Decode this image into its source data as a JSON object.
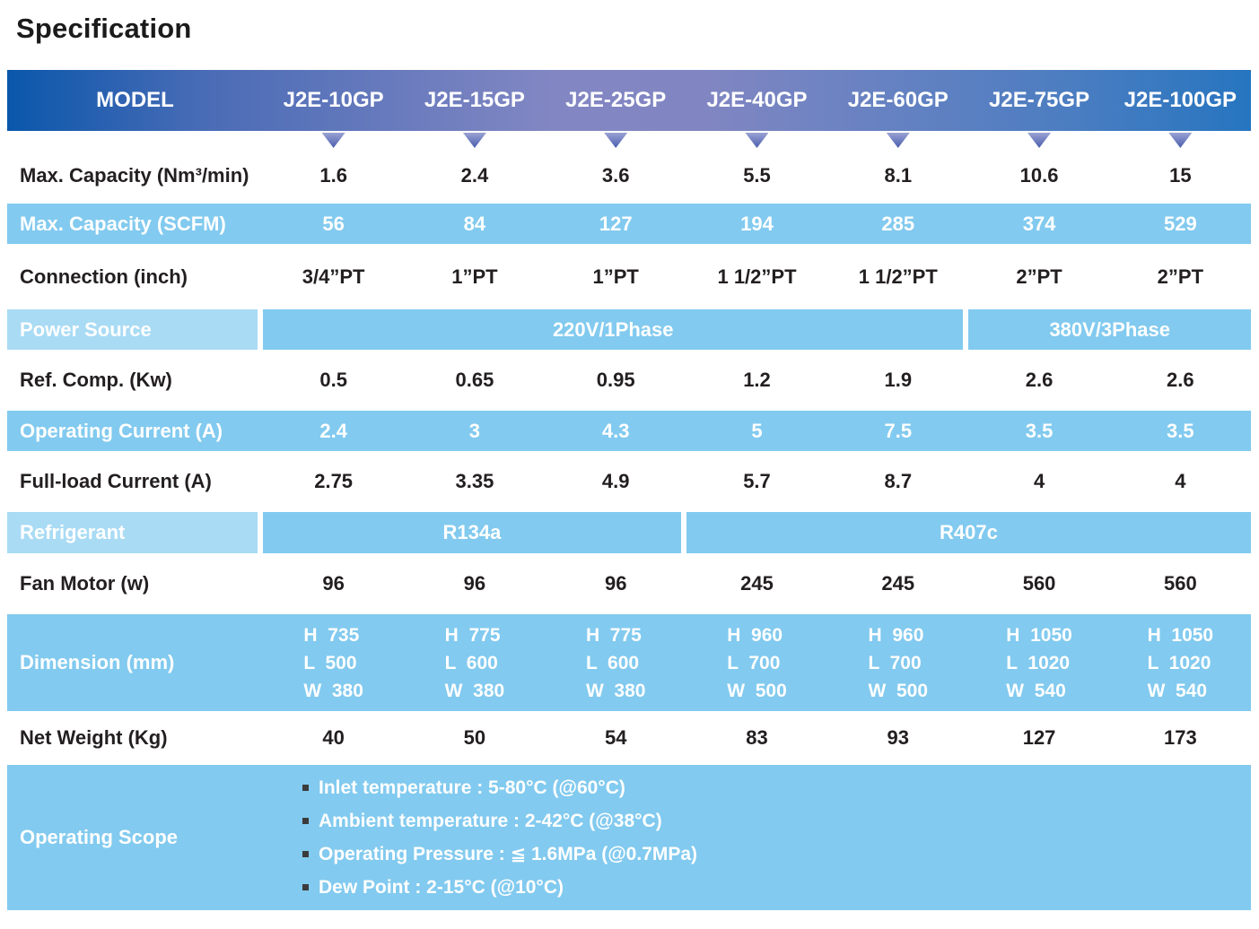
{
  "title": "Specification",
  "colors": {
    "header_gradient_left": "#0a57ab",
    "header_gradient_mid": "#8287c3",
    "header_gradient_right": "#2675c0",
    "band_blue": "#82caef",
    "label_light_blue": "#a9dbf4",
    "triangle_blue": "#5b6cb7",
    "text_dark": "#231f20",
    "text_white": "#ffffff"
  },
  "table": {
    "model_label": "MODEL",
    "models": [
      "J2E-10GP",
      "J2E-15GP",
      "J2E-25GP",
      "J2E-40GP",
      "J2E-60GP",
      "J2E-75GP",
      "J2E-100GP"
    ],
    "max_capacity_nm3": {
      "label": "Max. Capacity (Nm³/min)",
      "values": [
        "1.6",
        "2.4",
        "3.6",
        "5.5",
        "8.1",
        "10.6",
        "15"
      ]
    },
    "max_capacity_scfm": {
      "label": "Max. Capacity (SCFM)",
      "values": [
        "56",
        "84",
        "127",
        "194",
        "285",
        "374",
        "529"
      ]
    },
    "connection": {
      "label": "Connection (inch)",
      "values": [
        "3/4”PT",
        "1”PT",
        "1”PT",
        "1 1/2”PT",
        "1 1/2”PT",
        "2”PT",
        "2”PT"
      ]
    },
    "power_source": {
      "label": "Power Source",
      "span_a": "220V/1Phase",
      "span_b": "380V/3Phase"
    },
    "ref_comp": {
      "label": "Ref. Comp. (Kw)",
      "values": [
        "0.5",
        "0.65",
        "0.95",
        "1.2",
        "1.9",
        "2.6",
        "2.6"
      ]
    },
    "operating_current": {
      "label": "Operating Current (A)",
      "values": [
        "2.4",
        "3",
        "4.3",
        "5",
        "7.5",
        "3.5",
        "3.5"
      ]
    },
    "full_load_current": {
      "label": "Full-load Current (A)",
      "values": [
        "2.75",
        "3.35",
        "4.9",
        "5.7",
        "8.7",
        "4",
        "4"
      ]
    },
    "refrigerant": {
      "label": "Refrigerant",
      "span_a": "R134a",
      "span_b": "R407c"
    },
    "fan_motor": {
      "label": "Fan Motor (w)",
      "values": [
        "96",
        "96",
        "96",
        "245",
        "245",
        "560",
        "560"
      ]
    },
    "dimension": {
      "label": "Dimension (mm)",
      "values": [
        "H  735\nL  500\nW  380",
        "H  775\nL  600\nW  380",
        "H  775\nL  600\nW  380",
        "H  960\nL  700\nW  500",
        "H  960\nL  700\nW  500",
        "H  1050\nL  1020\nW  540",
        "H  1050\nL  1020\nW  540"
      ]
    },
    "net_weight": {
      "label": "Net Weight (Kg)",
      "values": [
        "40",
        "50",
        "54",
        "83",
        "93",
        "127",
        "173"
      ]
    },
    "operating_scope": {
      "label": "Operating Scope",
      "items": [
        "Inlet temperature : 5-80°C (@60°C)",
        "Ambient temperature : 2-42°C (@38°C)",
        "Operating Pressure : ≦ 1.6MPa (@0.7MPa)",
        "Dew Point : 2-15°C (@10°C)"
      ]
    }
  }
}
